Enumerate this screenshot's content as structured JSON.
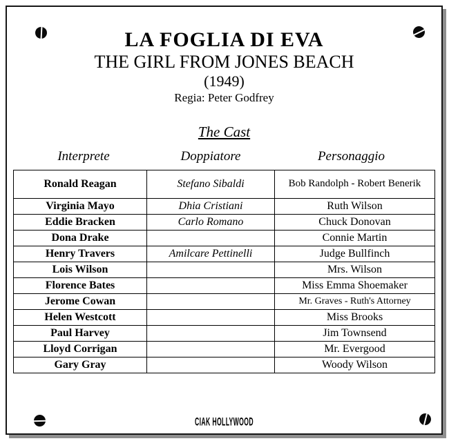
{
  "header": {
    "title": "LA FOGLIA DI EVA",
    "subtitle": "THE GIRL FROM JONES BEACH",
    "year": "(1949)",
    "director": "Regia: Peter Godfrey"
  },
  "cast_section": {
    "heading": "The Cast",
    "columns": [
      "Interprete",
      "Doppiatore",
      "Personaggio"
    ],
    "rows": [
      {
        "interprete": "Ronald Reagan",
        "doppiatore": "Stefano Sibaldi",
        "personaggio": "Bob Randolph - Robert Benerik"
      },
      {
        "interprete": "Virginia Mayo",
        "doppiatore": "Dhia Cristiani",
        "personaggio": "Ruth Wilson"
      },
      {
        "interprete": "Eddie Bracken",
        "doppiatore": "Carlo Romano",
        "personaggio": "Chuck Donovan"
      },
      {
        "interprete": "Dona Drake",
        "doppiatore": "",
        "personaggio": "Connie Martin"
      },
      {
        "interprete": "Henry Travers",
        "doppiatore": "Amilcare Pettinelli",
        "personaggio": "Judge Bullfinch"
      },
      {
        "interprete": "Lois Wilson",
        "doppiatore": "",
        "personaggio": "Mrs. Wilson"
      },
      {
        "interprete": "Florence Bates",
        "doppiatore": "",
        "personaggio": "Miss Emma Shoemaker"
      },
      {
        "interprete": "Jerome Cowan",
        "doppiatore": "",
        "personaggio": "Mr. Graves - Ruth's Attorney"
      },
      {
        "interprete": "Helen Westcott",
        "doppiatore": "",
        "personaggio": "Miss Brooks"
      },
      {
        "interprete": "Paul Harvey",
        "doppiatore": "",
        "personaggio": "Jim Townsend"
      },
      {
        "interprete": "Lloyd Corrigan",
        "doppiatore": "",
        "personaggio": "Mr. Evergood"
      },
      {
        "interprete": "Gary Gray",
        "doppiatore": "",
        "personaggio": "Woody Wilson"
      }
    ]
  },
  "footer": {
    "logo": "CIAK HOLLYWOOD"
  },
  "icons": {
    "corners": [
      "screw-top-left-icon",
      "screw-top-right-icon",
      "screw-bottom-left-icon",
      "screw-bottom-right-icon"
    ]
  },
  "colors": {
    "ink": "#000000",
    "paper": "#ffffff",
    "shadow": "#8f8f8f"
  }
}
